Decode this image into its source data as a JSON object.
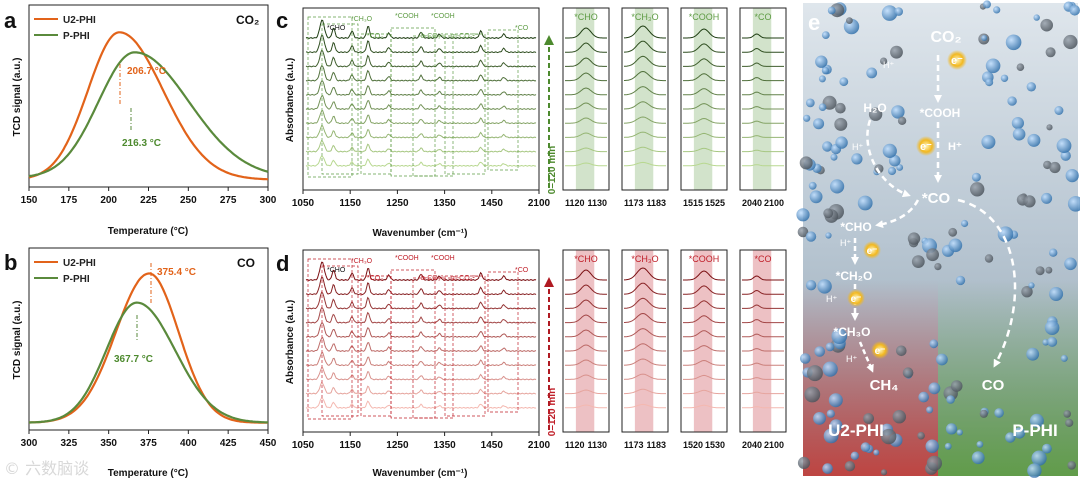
{
  "panels": {
    "a": {
      "label": "a",
      "gas": "CO₂",
      "xlabel": "Temperature (°C)",
      "ylabel": "TCD signal (a.u.)",
      "legend": [
        "U2-PHI",
        "P-PHI"
      ],
      "peak_labels": [
        "206.7 °C",
        "216.3 °C"
      ]
    },
    "b": {
      "label": "b",
      "gas": "CO",
      "xlabel": "Temperature (°C)",
      "ylabel": "TCD signal (a.u.)",
      "legend": [
        "U2-PHI",
        "P-PHI"
      ],
      "peak_labels": [
        "375.4 °C",
        "367.7 °C"
      ]
    },
    "c": {
      "label": "c",
      "xlabel": "Wavenumber (cm⁻¹)",
      "ylabel": "Absorbance (a.u.)",
      "time_label": "0–120 min",
      "annotations": [
        "*CH₃O",
        "*COOH",
        "*COOH",
        "*CHO",
        "*CO₂",
        "b-CO₃²⁻",
        "m-CO₃²⁻",
        "*CO"
      ],
      "zoom_titles": [
        "*CHO",
        "*CH₃O",
        "*COOH",
        "*CO"
      ]
    },
    "d": {
      "label": "d",
      "xlabel": "Wavenumber (cm⁻¹)",
      "ylabel": "Absorbance (a.u.)",
      "time_label": "0–120 min",
      "annotations": [
        "*CH₃O",
        "*COOH",
        "*COOH",
        "*CHO",
        "*CO₂",
        "b-CO₃²⁻",
        "m-CO₃²⁻",
        "*CO"
      ],
      "zoom_titles": [
        "*CHO",
        "*CH₃O",
        "*COOH",
        "*CO"
      ]
    },
    "e": {
      "label": "e",
      "species": [
        "CO₂",
        "*COOH",
        "H₂O",
        "*CO",
        "*CHO",
        "*CH₂O",
        "*CH₃O",
        "CH₄",
        "CO"
      ],
      "protons": [
        "H⁺",
        "H⁺",
        "H⁺",
        "H⁺",
        "H⁺",
        "H⁺"
      ],
      "electrons": [
        "e⁻",
        "e⁻",
        "e⁻",
        "e⁻",
        "e⁻"
      ],
      "catalysts": [
        "U2-PHI",
        "P-PHI"
      ]
    }
  },
  "watermark": "© 六数脑谈",
  "colors": {
    "u2": "#e2631a",
    "p": "#5a8a3c",
    "green_text": "#4d8a2e",
    "red": "#c0202a",
    "e_bg_top": "#c9d4de",
    "e_bg_left": "#c0403c",
    "e_bg_right": "#5f9c45"
  },
  "chart_data": [
    {
      "type": "line",
      "panel": "a",
      "title": "CO₂",
      "xlabel": "Temperature (°C)",
      "ylabel": "TCD signal (a.u.)",
      "xlim": [
        150,
        300
      ],
      "x_ticks": [
        150,
        175,
        200,
        225,
        250,
        275,
        300
      ],
      "series": [
        {
          "name": "U2-PHI",
          "peak_x": 206.7,
          "peak_y": 0.85,
          "width_left": 33,
          "width_right": 46,
          "base": 0.04
        },
        {
          "name": "P-PHI",
          "peak_x": 216.3,
          "peak_y": 0.74,
          "width_left": 38,
          "width_right": 57,
          "base": 0.05
        }
      ]
    },
    {
      "type": "line",
      "panel": "b",
      "title": "CO",
      "xlabel": "Temperature (°C)",
      "ylabel": "TCD signal (a.u.)",
      "xlim": [
        300,
        450
      ],
      "x_ticks": [
        300,
        325,
        350,
        375,
        400,
        425,
        450
      ],
      "series": [
        {
          "name": "U2-PHI",
          "peak_x": 375.4,
          "peak_y": 0.86,
          "width_left": 35,
          "width_right": 31,
          "base": 0.04
        },
        {
          "name": "P-PHI",
          "peak_x": 367.7,
          "peak_y": 0.7,
          "width_left": 32,
          "width_right": 40,
          "base": 0.04
        }
      ]
    },
    {
      "type": "line",
      "panel": "c",
      "xlabel": "Wavenumber (cm⁻¹)",
      "ylabel": "Absorbance (a.u.)",
      "x_ticks": [
        1050,
        1150,
        1250,
        1350,
        1450,
        2100
      ],
      "zoom_ticks": [
        [
          "1120",
          "1130"
        ],
        [
          "1173",
          "1183"
        ],
        [
          "1515",
          "1525"
        ],
        [
          "2040",
          "2100"
        ]
      ],
      "n_spectra": 10
    },
    {
      "type": "line",
      "panel": "d",
      "xlabel": "Wavenumber (cm⁻¹)",
      "ylabel": "Absorbance (a.u.)",
      "x_ticks": [
        1050,
        1150,
        1250,
        1350,
        1450,
        2100
      ],
      "zoom_ticks": [
        [
          "1120",
          "1130"
        ],
        [
          "1173",
          "1183"
        ],
        [
          "1520",
          "1530"
        ],
        [
          "2040",
          "2100"
        ]
      ],
      "n_spectra": 10
    }
  ]
}
